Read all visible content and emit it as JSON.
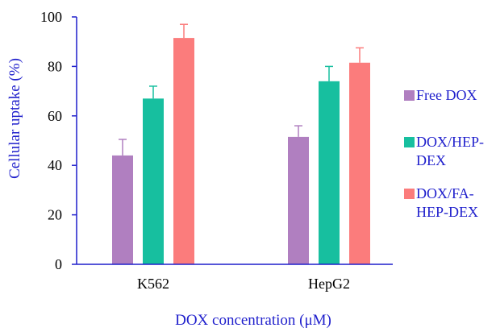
{
  "chart_data": {
    "type": "bar",
    "title": "",
    "xlabel": "DOX concentration (μM)",
    "ylabel": "Cellular uptake  (%)",
    "ylim": [
      0,
      100
    ],
    "yticks": [
      "0",
      "20",
      "40",
      "60",
      "80",
      "100"
    ],
    "categories": [
      "K562",
      "HepG2"
    ],
    "legend_position": "right",
    "grid": false,
    "colors": {
      "axis": "#1f1fcc",
      "axis_text": "#000000",
      "label_text": "#1f1fcc"
    },
    "series": [
      {
        "name": "Free DOX",
        "legend_lines": [
          "Free DOX"
        ],
        "color": "#b07fc0",
        "values": [
          44,
          51.5
        ],
        "errors": [
          6.5,
          4.5
        ]
      },
      {
        "name": "DOX/HEP-DEX",
        "legend_lines": [
          "DOX/HEP-",
          "DEX"
        ],
        "color": "#17bf9f",
        "values": [
          67,
          74
        ],
        "errors": [
          5,
          6
        ]
      },
      {
        "name": "DOX/FA-HEP-DEX",
        "legend_lines": [
          "DOX/FA-",
          "HEP-DEX"
        ],
        "color": "#fb7c7c",
        "values": [
          91.5,
          81.5
        ],
        "errors": [
          5.5,
          6
        ]
      }
    ]
  }
}
